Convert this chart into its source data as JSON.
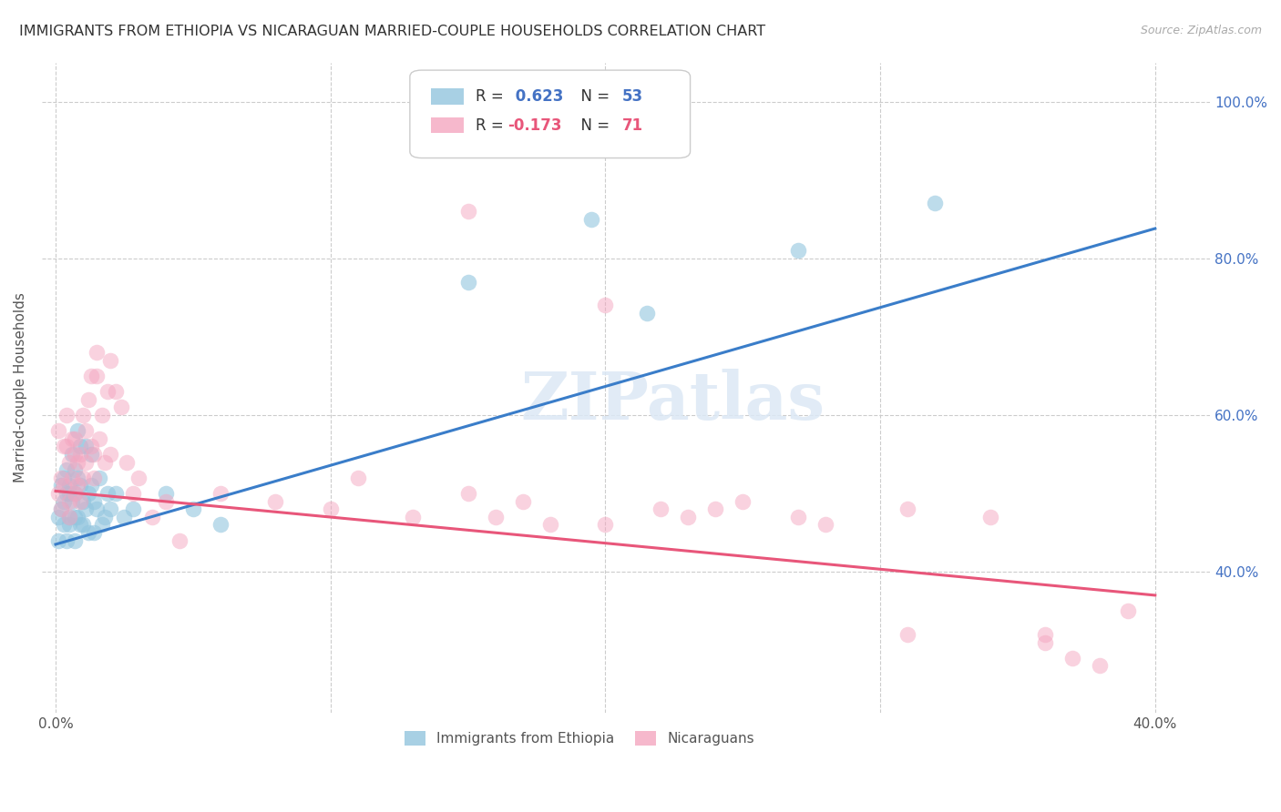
{
  "title": "IMMIGRANTS FROM ETHIOPIA VS NICARAGUAN MARRIED-COUPLE HOUSEHOLDS CORRELATION CHART",
  "source": "Source: ZipAtlas.com",
  "ylabel": "Married-couple Households",
  "legend_blue_r": "0.623",
  "legend_blue_n": "53",
  "legend_pink_r": "-0.173",
  "legend_pink_n": "71",
  "blue_color": "#92c5de",
  "pink_color": "#f4a6c0",
  "blue_line_color": "#3a7dc9",
  "pink_line_color": "#e8567a",
  "background_color": "#ffffff",
  "grid_color": "#cccccc",
  "blue_scatter_x": [
    0.001,
    0.001,
    0.002,
    0.002,
    0.003,
    0.003,
    0.003,
    0.004,
    0.004,
    0.004,
    0.005,
    0.005,
    0.005,
    0.005,
    0.006,
    0.006,
    0.007,
    0.007,
    0.007,
    0.007,
    0.008,
    0.008,
    0.008,
    0.009,
    0.009,
    0.009,
    0.01,
    0.01,
    0.011,
    0.011,
    0.012,
    0.012,
    0.013,
    0.013,
    0.014,
    0.014,
    0.015,
    0.016,
    0.017,
    0.018,
    0.019,
    0.02,
    0.022,
    0.025,
    0.028,
    0.04,
    0.05,
    0.06,
    0.15,
    0.195,
    0.215,
    0.27,
    0.32
  ],
  "blue_scatter_y": [
    0.47,
    0.44,
    0.51,
    0.48,
    0.52,
    0.49,
    0.46,
    0.5,
    0.53,
    0.44,
    0.51,
    0.47,
    0.5,
    0.46,
    0.49,
    0.55,
    0.53,
    0.5,
    0.47,
    0.44,
    0.58,
    0.52,
    0.47,
    0.51,
    0.46,
    0.56,
    0.49,
    0.46,
    0.56,
    0.48,
    0.5,
    0.45,
    0.51,
    0.55,
    0.49,
    0.45,
    0.48,
    0.52,
    0.46,
    0.47,
    0.5,
    0.48,
    0.5,
    0.47,
    0.48,
    0.5,
    0.48,
    0.46,
    0.77,
    0.85,
    0.73,
    0.81,
    0.87
  ],
  "blue_line_x": [
    0.0,
    0.4
  ],
  "blue_line_y": [
    0.435,
    0.838
  ],
  "pink_scatter_x": [
    0.001,
    0.001,
    0.002,
    0.002,
    0.003,
    0.003,
    0.004,
    0.004,
    0.005,
    0.005,
    0.005,
    0.006,
    0.006,
    0.007,
    0.007,
    0.007,
    0.008,
    0.008,
    0.009,
    0.009,
    0.01,
    0.01,
    0.011,
    0.011,
    0.012,
    0.013,
    0.013,
    0.014,
    0.014,
    0.015,
    0.015,
    0.016,
    0.017,
    0.018,
    0.019,
    0.02,
    0.02,
    0.022,
    0.024,
    0.026,
    0.028,
    0.03,
    0.035,
    0.04,
    0.045,
    0.06,
    0.08,
    0.1,
    0.11,
    0.13,
    0.15,
    0.16,
    0.17,
    0.18,
    0.2,
    0.22,
    0.23,
    0.25,
    0.27,
    0.31,
    0.34,
    0.36,
    0.37,
    0.38,
    0.39,
    0.15,
    0.2,
    0.24,
    0.28,
    0.31,
    0.36
  ],
  "pink_scatter_y": [
    0.58,
    0.5,
    0.52,
    0.48,
    0.56,
    0.51,
    0.6,
    0.56,
    0.49,
    0.54,
    0.47,
    0.52,
    0.57,
    0.5,
    0.55,
    0.57,
    0.51,
    0.54,
    0.49,
    0.55,
    0.52,
    0.6,
    0.54,
    0.58,
    0.62,
    0.56,
    0.65,
    0.52,
    0.55,
    0.68,
    0.65,
    0.57,
    0.6,
    0.54,
    0.63,
    0.67,
    0.55,
    0.63,
    0.61,
    0.54,
    0.5,
    0.52,
    0.47,
    0.49,
    0.44,
    0.5,
    0.49,
    0.48,
    0.52,
    0.47,
    0.5,
    0.47,
    0.49,
    0.46,
    0.46,
    0.48,
    0.47,
    0.49,
    0.47,
    0.48,
    0.47,
    0.32,
    0.29,
    0.28,
    0.35,
    0.86,
    0.74,
    0.48,
    0.46,
    0.32,
    0.31
  ],
  "pink_line_x": [
    0.0,
    0.4
  ],
  "pink_line_y": [
    0.503,
    0.37
  ],
  "xlim": [
    -0.005,
    0.42
  ],
  "ylim": [
    0.22,
    1.05
  ],
  "xticks": [
    0.0,
    0.1,
    0.2,
    0.3,
    0.4
  ],
  "yticks": [
    0.4,
    0.6,
    0.8,
    1.0
  ],
  "ytick_labels": [
    "40.0%",
    "60.0%",
    "80.0%",
    "100.0%"
  ]
}
